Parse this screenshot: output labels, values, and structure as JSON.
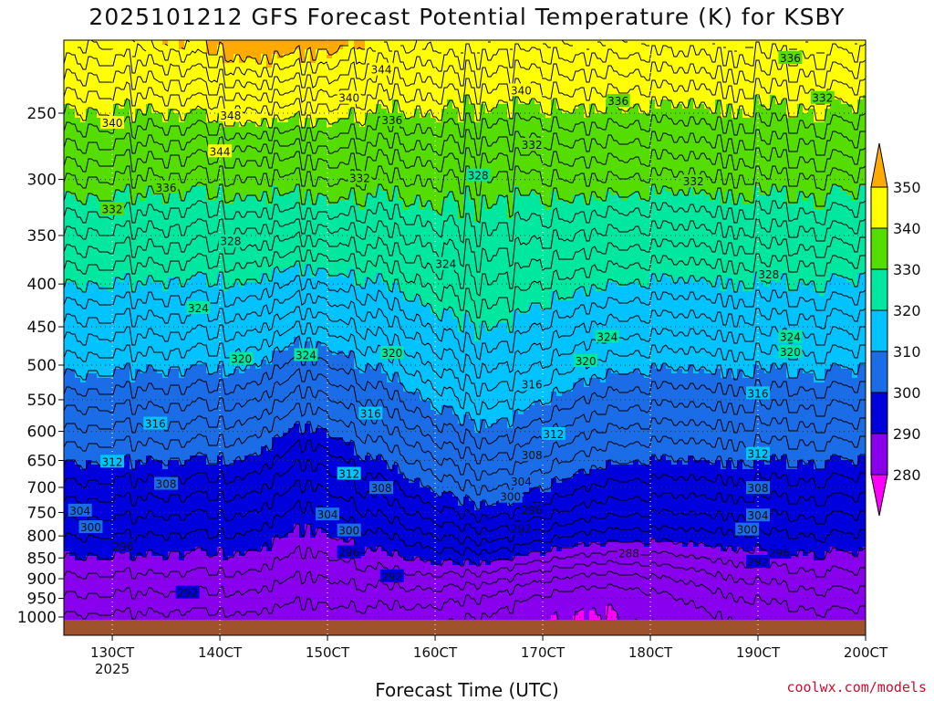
{
  "title": "2025101212 GFS Forecast Potential Temperature (K) for KSBY",
  "credit": "coolwx.com/models",
  "chart_data": {
    "type": "heatmap",
    "title": "2025101212 GFS Forecast Potential Temperature (K) for KSBY",
    "xlabel": "Forecast Time (UTC)",
    "ylabel": "",
    "x_ticks": [
      {
        "label": "130CT",
        "value": 130
      },
      {
        "label": "140CT",
        "value": 140
      },
      {
        "label": "150CT",
        "value": 150
      },
      {
        "label": "160CT",
        "value": 160
      },
      {
        "label": "170CT",
        "value": 170
      },
      {
        "label": "180CT",
        "value": 180
      },
      {
        "label": "190CT",
        "value": 190
      },
      {
        "label": "200CT",
        "value": 200
      }
    ],
    "x_year": "2025",
    "xlim": [
      125.5,
      200
    ],
    "y_ticks": [
      250,
      300,
      350,
      400,
      450,
      500,
      550,
      600,
      650,
      700,
      750,
      800,
      850,
      900,
      950,
      1000
    ],
    "ylim": [
      1020,
      200
    ],
    "colorbar": {
      "levels": [
        280,
        290,
        300,
        310,
        320,
        330,
        340,
        350
      ],
      "colors": [
        "#ff00ff",
        "#8800ee",
        "#0000dd",
        "#1a6de6",
        "#00c3ff",
        "#00e8a0",
        "#55dd00",
        "#ffff00",
        "#ffaa00"
      ]
    },
    "contour_labels": [
      {
        "text": "344",
        "x": 155,
        "p": 222
      },
      {
        "text": "348",
        "x": 141,
        "p": 252
      },
      {
        "text": "340",
        "x": 130,
        "p": 257
      },
      {
        "text": "344",
        "x": 140,
        "p": 278
      },
      {
        "text": "340",
        "x": 152,
        "p": 240
      },
      {
        "text": "336",
        "x": 156,
        "p": 255
      },
      {
        "text": "340",
        "x": 168,
        "p": 235
      },
      {
        "text": "336",
        "x": 177,
        "p": 242
      },
      {
        "text": "336",
        "x": 193,
        "p": 215
      },
      {
        "text": "332",
        "x": 196,
        "p": 240
      },
      {
        "text": "332",
        "x": 169,
        "p": 273
      },
      {
        "text": "336",
        "x": 135,
        "p": 307
      },
      {
        "text": "332",
        "x": 153,
        "p": 299
      },
      {
        "text": "328",
        "x": 164,
        "p": 297
      },
      {
        "text": "332",
        "x": 130,
        "p": 326
      },
      {
        "text": "332",
        "x": 184,
        "p": 302
      },
      {
        "text": "328",
        "x": 141,
        "p": 356
      },
      {
        "text": "324",
        "x": 161,
        "p": 379
      },
      {
        "text": "328",
        "x": 191,
        "p": 390
      },
      {
        "text": "324",
        "x": 138,
        "p": 428
      },
      {
        "text": "324",
        "x": 176,
        "p": 463
      },
      {
        "text": "324",
        "x": 193,
        "p": 463
      },
      {
        "text": "324",
        "x": 148,
        "p": 487
      },
      {
        "text": "320",
        "x": 156,
        "p": 484
      },
      {
        "text": "320",
        "x": 142,
        "p": 492
      },
      {
        "text": "320",
        "x": 174,
        "p": 495
      },
      {
        "text": "320",
        "x": 193,
        "p": 483
      },
      {
        "text": "316",
        "x": 169,
        "p": 528
      },
      {
        "text": "316",
        "x": 190,
        "p": 541
      },
      {
        "text": "316",
        "x": 134,
        "p": 588
      },
      {
        "text": "316",
        "x": 154,
        "p": 572
      },
      {
        "text": "312",
        "x": 171,
        "p": 605
      },
      {
        "text": "312",
        "x": 190,
        "p": 639
      },
      {
        "text": "312",
        "x": 130,
        "p": 653
      },
      {
        "text": "312",
        "x": 152,
        "p": 675
      },
      {
        "text": "308",
        "x": 135,
        "p": 694
      },
      {
        "text": "308",
        "x": 169,
        "p": 641
      },
      {
        "text": "308",
        "x": 155,
        "p": 702
      },
      {
        "text": "304",
        "x": 168,
        "p": 690
      },
      {
        "text": "308",
        "x": 190,
        "p": 702
      },
      {
        "text": "300",
        "x": 167,
        "p": 719
      },
      {
        "text": "304",
        "x": 127,
        "p": 747
      },
      {
        "text": "304",
        "x": 150,
        "p": 755
      },
      {
        "text": "296",
        "x": 169,
        "p": 745
      },
      {
        "text": "304",
        "x": 190,
        "p": 757
      },
      {
        "text": "300",
        "x": 128,
        "p": 782
      },
      {
        "text": "292",
        "x": 168,
        "p": 785
      },
      {
        "text": "300",
        "x": 189,
        "p": 787
      },
      {
        "text": "300",
        "x": 152,
        "p": 789
      },
      {
        "text": "296",
        "x": 131,
        "p": 824
      },
      {
        "text": "296",
        "x": 152,
        "p": 838
      },
      {
        "text": "288",
        "x": 178,
        "p": 840
      },
      {
        "text": "296",
        "x": 192,
        "p": 839
      },
      {
        "text": "292",
        "x": 190,
        "p": 860
      },
      {
        "text": "292",
        "x": 156,
        "p": 895
      },
      {
        "text": "292",
        "x": 137,
        "p": 936
      }
    ]
  }
}
